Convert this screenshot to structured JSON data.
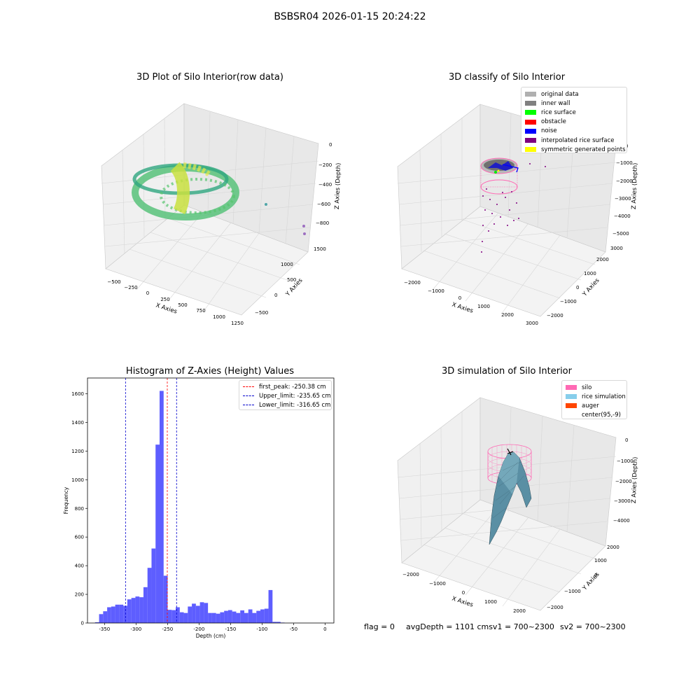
{
  "suptitle": "BSBSR04 2026-01-15 20:24:22",
  "colors": {
    "histogram_bar": "#5555ff",
    "first_peak": "#ff0000",
    "limits": "#0000cc"
  },
  "chart_data": [
    {
      "type": "scatter",
      "title": "3D Plot of Silo Interior(row data)",
      "xlabel": "X Axies",
      "ylabel": "Y Axies",
      "zlabel": "Z Axies (Depth)",
      "x_ticks": [
        "−500",
        "−250",
        "0",
        "250",
        "500",
        "750",
        "1000",
        "1250"
      ],
      "y_ticks": [
        "−500",
        "0",
        "500",
        "1000",
        "1500"
      ],
      "z_ticks": [
        "0",
        "−200",
        "−400",
        "−600",
        "−800"
      ],
      "xlim": [
        -600,
        1300
      ],
      "ylim": [
        -700,
        1600
      ],
      "zlim": [
        -900,
        50
      ],
      "description_series": "ring of points colored by depth (green to yellow) plus a few outliers"
    },
    {
      "type": "scatter",
      "title": "3D classify of Silo Interior",
      "xlabel": "X Axies",
      "ylabel": "Y Axies",
      "zlabel": "Z Axies (Depth)",
      "x_ticks": [
        "−2000",
        "−1000",
        "0",
        "1000",
        "2000",
        "3000"
      ],
      "y_ticks": [
        "−2000",
        "−1000",
        "0",
        "1000",
        "2000",
        "3000"
      ],
      "z_ticks": [
        "0",
        "−1000",
        "−2000",
        "−3000",
        "−4000",
        "−5000"
      ],
      "legend": [
        {
          "label": "original data",
          "color": "#b0b0b0"
        },
        {
          "label": "inner wall",
          "color": "#808080"
        },
        {
          "label": "rice surface",
          "color": "#00ff00"
        },
        {
          "label": "obstacle",
          "color": "#ff0000"
        },
        {
          "label": "noise",
          "color": "#0000ff"
        },
        {
          "label": "interpolated rice surface",
          "color": "#800080"
        },
        {
          "label": "symmetric generated points",
          "color": "#ffff00"
        }
      ]
    },
    {
      "type": "bar",
      "title": "Histogram of Z-Axies (Height) Values",
      "xlabel": "Depth (cm)",
      "ylabel": "Frequency",
      "xlim": [
        -377,
        14
      ],
      "ylim": [
        0,
        1710
      ],
      "x_ticks": [
        -350,
        -300,
        -250,
        -200,
        -150,
        -100,
        -50,
        0
      ],
      "y_ticks": [
        0,
        200,
        400,
        600,
        800,
        1000,
        1200,
        1400,
        1600
      ],
      "bin_start": -365,
      "bin_width": 6.4,
      "values": [
        5,
        62,
        82,
        110,
        115,
        128,
        128,
        120,
        165,
        175,
        185,
        180,
        250,
        385,
        520,
        1245,
        1620,
        330,
        92,
        90,
        110,
        75,
        70,
        115,
        135,
        120,
        145,
        140,
        70,
        70,
        65,
        75,
        85,
        90,
        80,
        70,
        88,
        70,
        95,
        70,
        85,
        95,
        100,
        230,
        8,
        8,
        3
      ],
      "vlines": [
        {
          "label": "first_peak: -250.38 cm",
          "x": -250.38,
          "color": "#ff0000"
        },
        {
          "label": "Upper_limit: -235.65 cm",
          "x": -235.65,
          "color": "#0000cc"
        },
        {
          "label": "Lower_limit: -316.65 cm",
          "x": -316.65,
          "color": "#0000cc"
        }
      ]
    },
    {
      "type": "surface",
      "title": "3D simulation of Silo Interior",
      "xlabel": "X Axies",
      "ylabel": "Y Axies",
      "zlabel": "Z Axies (Depth)",
      "x_ticks": [
        "−2000",
        "−1000",
        "0",
        "1000",
        "2000"
      ],
      "y_ticks": [
        "−2000",
        "−1000",
        "0",
        "1000",
        "2000"
      ],
      "z_ticks": [
        "0",
        "−1000",
        "−2000",
        "−3000",
        "−4000"
      ],
      "legend": [
        {
          "label": "silo",
          "color": "#ff69b4"
        },
        {
          "label": "rice simulation",
          "color": "#87ceeb"
        },
        {
          "label": "auger",
          "color": "#ff4500"
        },
        {
          "label": "center(95,-9)",
          "color": ""
        }
      ]
    }
  ],
  "footer": {
    "flag": "flag = 0",
    "avg": "avgDepth = 1101 cmsv1 = 700~2300",
    "sv2": "sv2 = 700~2300"
  }
}
